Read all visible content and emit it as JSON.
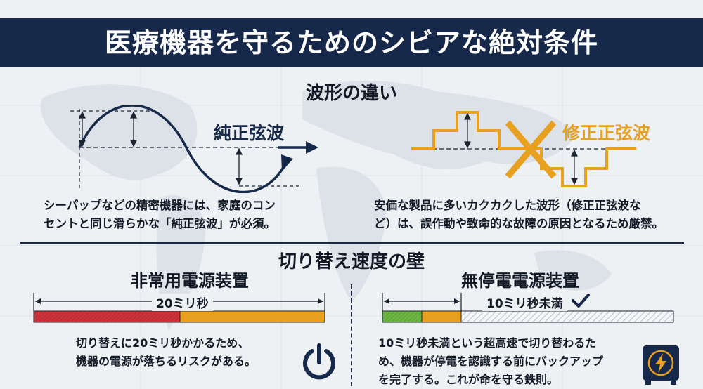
{
  "header": {
    "title": "医療機器を守るためのシビアな絶対条件"
  },
  "waveform_section": {
    "title": "波形の違い",
    "pure": {
      "label": "純正弦波",
      "description_line1": "シーパップなどの精密機器には、家庭のコン",
      "description_line2": "セントと同じ滑らかな「純正弦波」が必須。"
    },
    "modified": {
      "label": "修正正弦波",
      "description_line1": "安価な製品に多いカクカクした波形（修正正弦波な",
      "description_line2": "ど）は、誤作動や致命的な故障の原因となるため厳禁。"
    }
  },
  "switch_section": {
    "title": "切り替え速度の壁",
    "emergency": {
      "title": "非常用電源装置",
      "bar_label": "20ミリ秒",
      "description_line1": "切り替えに20ミリ秒かかるため、",
      "description_line2": "機器の電源が落ちるリスクがある。"
    },
    "ups": {
      "title": "無停電電源装置",
      "bar_label": "10ミリ秒未満",
      "description_line1": "10ミリ秒未満という超高速で切り替わるた",
      "description_line2": "め、機器が停電を認識する前にバックアップ",
      "description_line3": "を完了する。これが命を守る鉄則。"
    }
  },
  "colors": {
    "navy": "#16294a",
    "orange": "#e8a020",
    "red": "#c8343a",
    "green": "#6db644",
    "hatch": "#b8c0c8"
  },
  "icons": [
    "power-icon",
    "battery-lightning-icon",
    "checkmark-icon",
    "cross-icon"
  ]
}
